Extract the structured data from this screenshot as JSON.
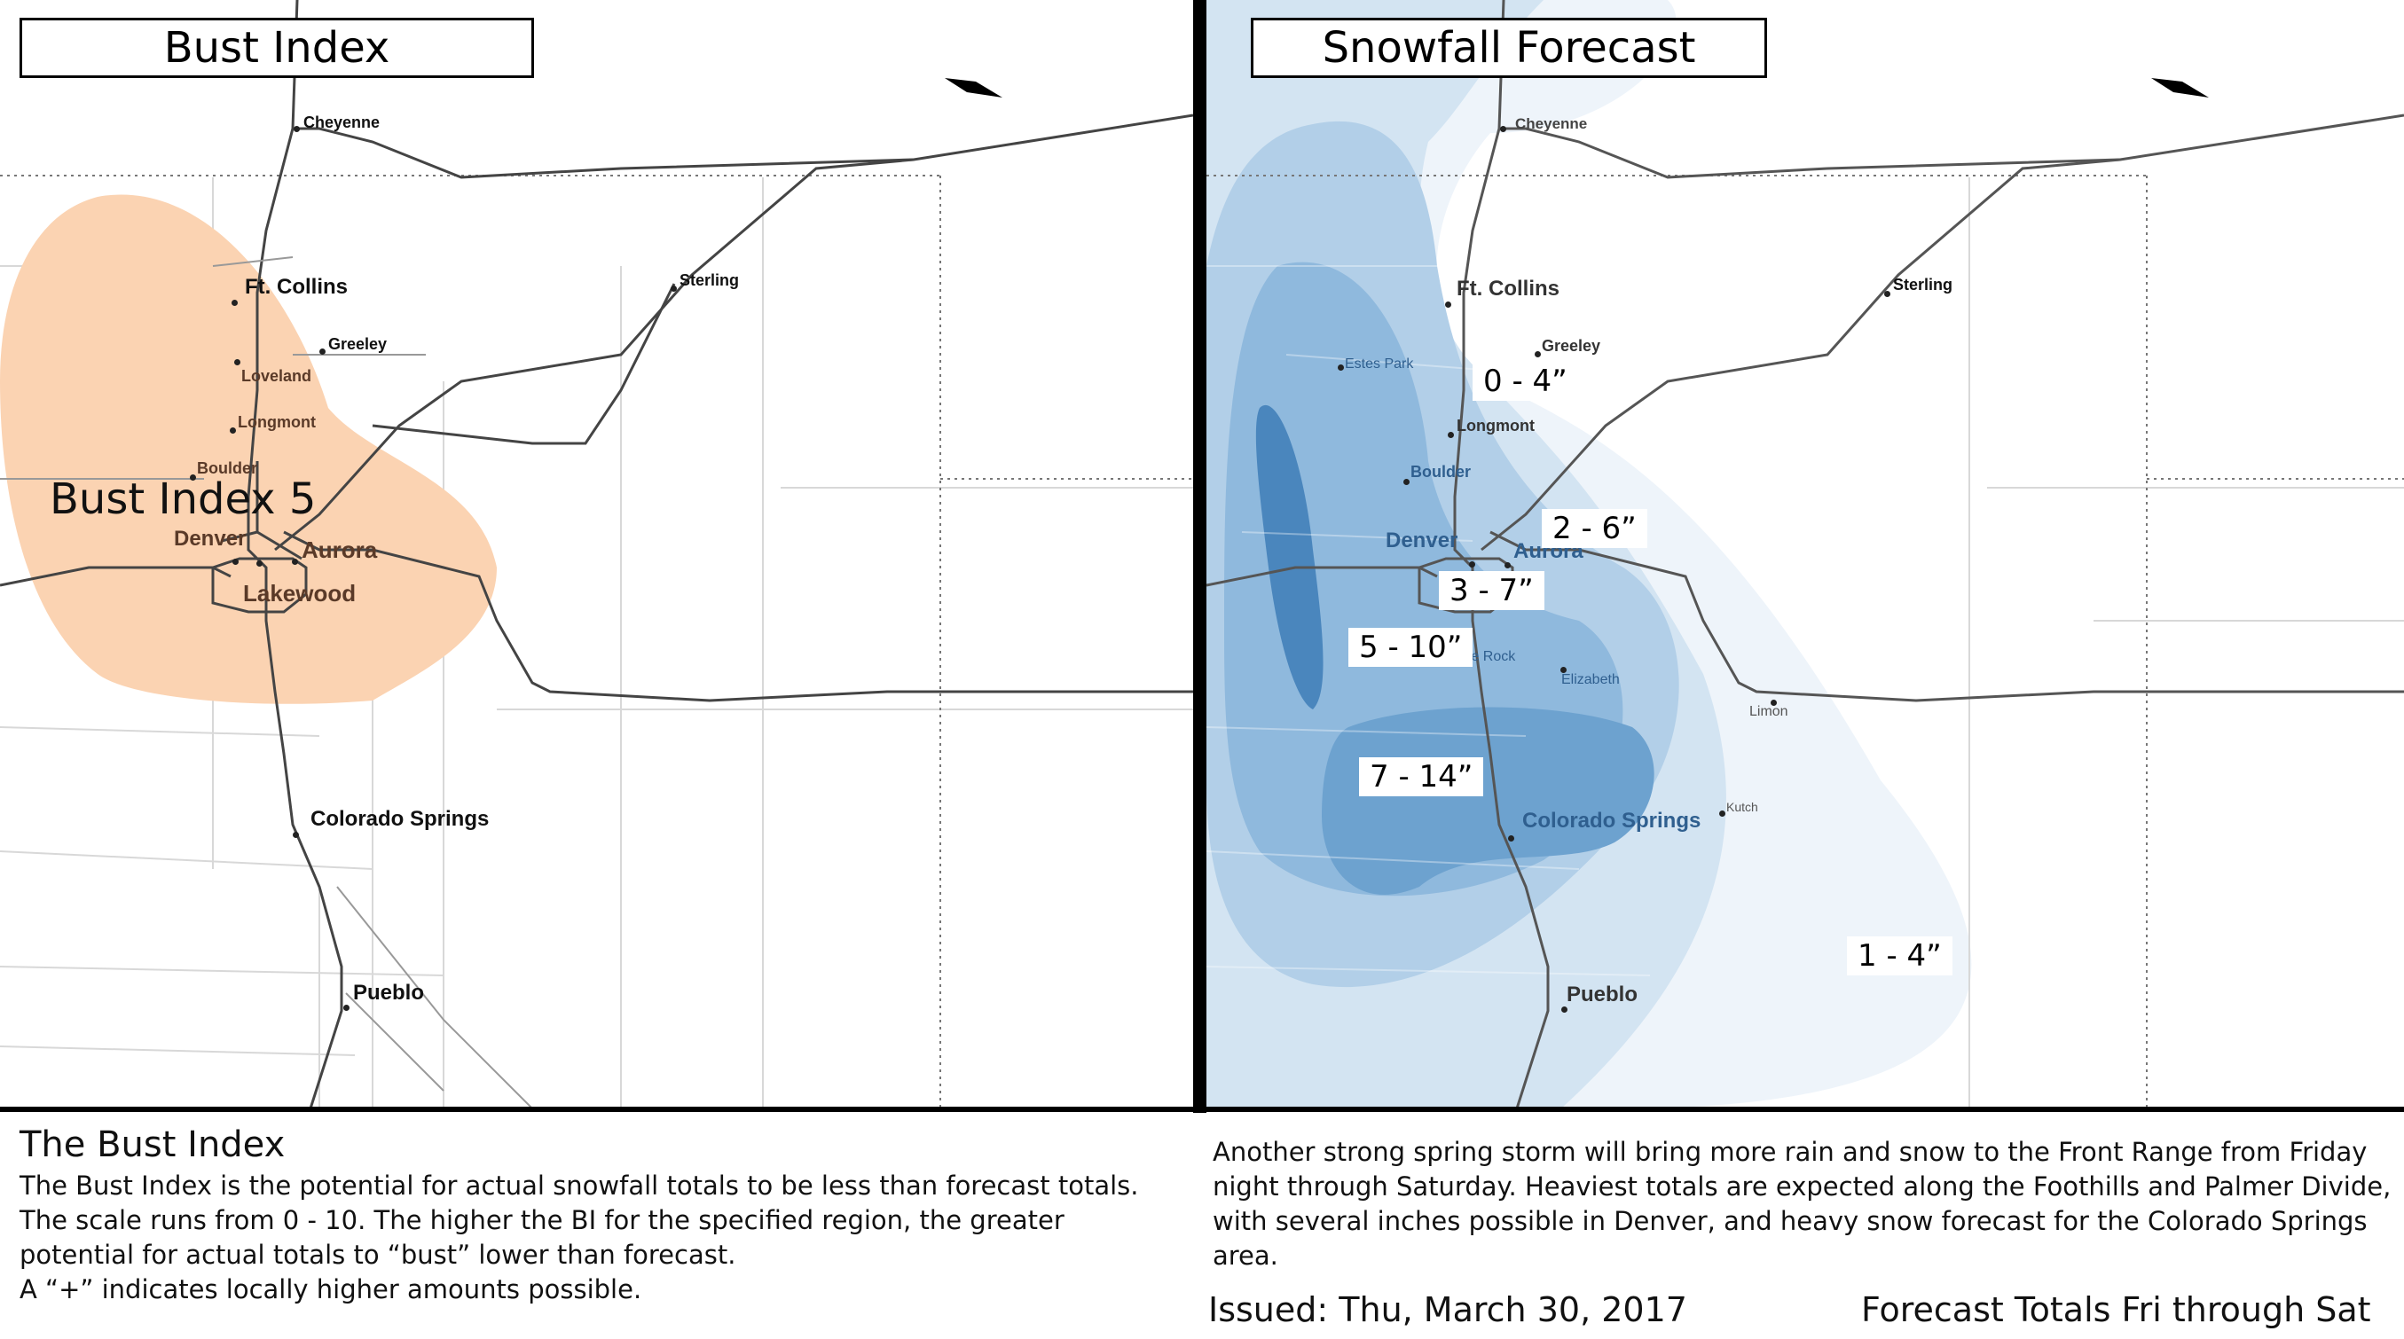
{
  "left_panel": {
    "title": "Bust Index",
    "zone_label": "Bust Index 5",
    "cities": [
      {
        "name": "Cheyenne"
      },
      {
        "name": "Ft. Collins"
      },
      {
        "name": "Greeley"
      },
      {
        "name": "Loveland"
      },
      {
        "name": "Longmont"
      },
      {
        "name": "Sterling"
      },
      {
        "name": "Boulder"
      },
      {
        "name": "Denver"
      },
      {
        "name": "Aurora"
      },
      {
        "name": "Lakewood"
      },
      {
        "name": "Colorado Springs"
      },
      {
        "name": "Pueblo"
      }
    ],
    "zone_color": "#fbd3b2"
  },
  "right_panel": {
    "title": "Snowfall Forecast",
    "ranges": [
      "0 - 4”",
      "2 - 6”",
      "3 - 7”",
      "5 - 10”",
      "7 - 14”",
      "1 - 4”"
    ],
    "cities": [
      {
        "name": "Cheyenne"
      },
      {
        "name": "Ft. Collins"
      },
      {
        "name": "Greeley"
      },
      {
        "name": "Estes Park"
      },
      {
        "name": "Longmont"
      },
      {
        "name": "Sterling"
      },
      {
        "name": "Boulder"
      },
      {
        "name": "Denver"
      },
      {
        "name": "Aurora"
      },
      {
        "name": "Castle Rock"
      },
      {
        "name": "Elizabeth"
      },
      {
        "name": "Limon"
      },
      {
        "name": "Kutch"
      },
      {
        "name": "Colorado Springs"
      },
      {
        "name": "Pueblo"
      }
    ],
    "band_colors": [
      "#eef4fa",
      "#d3e4f2",
      "#b2cfe8",
      "#8fb9dd",
      "#6da2cf",
      "#4a86bd"
    ]
  },
  "footer": {
    "heading": "The Bust Index",
    "description": "The Bust Index is the potential for actual snowfall totals to be less than forecast totals. The scale runs from 0 - 10. The higher the BI for the specified region, the greater potential for actual totals to “bust” lower than forecast.",
    "note": "A “+” indicates locally higher amounts possible.",
    "summary": "Another strong spring storm will bring more rain and snow to the Front Range from Friday night through Saturday. Heaviest totals are expected along the Foothills and Palmer Divide, with several inches possible in Denver, and heavy snow forecast for the Colorado Springs area.",
    "issued": "Issued: Thu, March 30, 2017",
    "period": "Forecast Totals Fri through Sat"
  }
}
